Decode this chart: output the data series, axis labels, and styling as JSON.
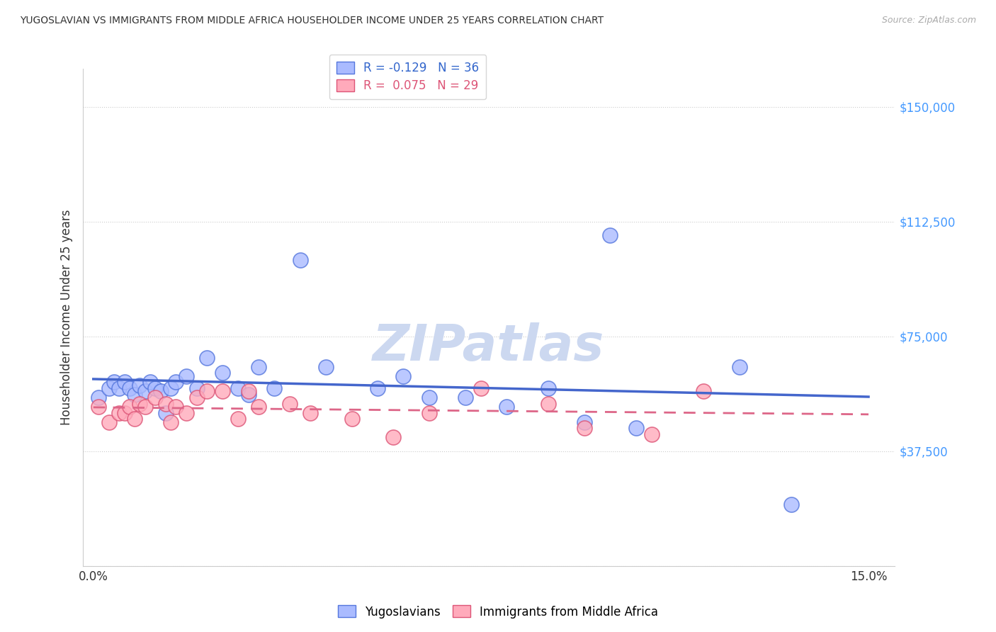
{
  "title": "YUGOSLAVIAN VS IMMIGRANTS FROM MIDDLE AFRICA HOUSEHOLDER INCOME UNDER 25 YEARS CORRELATION CHART",
  "source": "Source: ZipAtlas.com",
  "ylabel": "Householder Income Under 25 years",
  "ylim": [
    0,
    162500
  ],
  "xlim": [
    -0.002,
    0.155
  ],
  "ytick_vals": [
    0,
    37500,
    75000,
    112500,
    150000
  ],
  "ytick_labels": [
    "",
    "$37,500",
    "$75,000",
    "$112,500",
    "$150,000"
  ],
  "xtick_vals": [
    0.0,
    0.05,
    0.1,
    0.15
  ],
  "xtick_labels": [
    "0.0%",
    "",
    "",
    "15.0%"
  ],
  "blue_scatter_color": "#aabbff",
  "blue_edge_color": "#5577dd",
  "pink_scatter_color": "#ffaabb",
  "pink_edge_color": "#dd5577",
  "blue_line_color": "#4466cc",
  "pink_line_color": "#dd6688",
  "ytick_color": "#4499ff",
  "xtick_color": "#333333",
  "grid_color": "#cccccc",
  "watermark_color": "#ccd8f0",
  "legend_r1": "R = -0.129",
  "legend_n1": "N = 36",
  "legend_r2": "R =  0.075",
  "legend_n2": "N = 29",
  "legend_color1": "#3366cc",
  "legend_color2": "#dd5577",
  "yugo_x": [
    0.001,
    0.003,
    0.004,
    0.005,
    0.006,
    0.007,
    0.008,
    0.009,
    0.01,
    0.011,
    0.012,
    0.013,
    0.014,
    0.015,
    0.016,
    0.018,
    0.02,
    0.022,
    0.025,
    0.028,
    0.03,
    0.032,
    0.035,
    0.04,
    0.045,
    0.055,
    0.06,
    0.065,
    0.072,
    0.08,
    0.088,
    0.095,
    0.1,
    0.105,
    0.125,
    0.135
  ],
  "yugo_y": [
    55000,
    58000,
    60000,
    58000,
    60000,
    58000,
    56000,
    59000,
    57000,
    60000,
    58000,
    57000,
    50000,
    58000,
    60000,
    62000,
    58000,
    68000,
    63000,
    58000,
    56000,
    65000,
    58000,
    100000,
    65000,
    58000,
    62000,
    55000,
    55000,
    52000,
    58000,
    47000,
    108000,
    45000,
    65000,
    20000
  ],
  "midafrica_x": [
    0.001,
    0.003,
    0.005,
    0.006,
    0.007,
    0.008,
    0.009,
    0.01,
    0.012,
    0.014,
    0.015,
    0.016,
    0.018,
    0.02,
    0.022,
    0.025,
    0.028,
    0.03,
    0.032,
    0.038,
    0.042,
    0.05,
    0.058,
    0.065,
    0.075,
    0.088,
    0.095,
    0.108,
    0.118
  ],
  "midafrica_y": [
    52000,
    47000,
    50000,
    50000,
    52000,
    48000,
    53000,
    52000,
    55000,
    53000,
    47000,
    52000,
    50000,
    55000,
    57000,
    57000,
    48000,
    57000,
    52000,
    53000,
    50000,
    48000,
    42000,
    50000,
    58000,
    53000,
    45000,
    43000,
    57000
  ]
}
